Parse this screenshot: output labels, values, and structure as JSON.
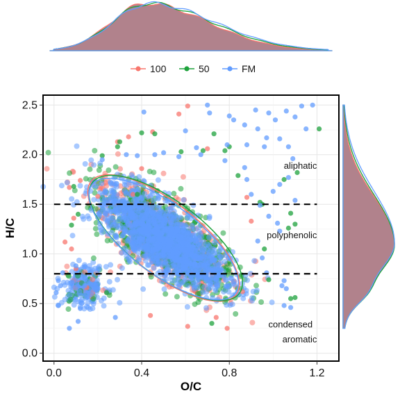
{
  "chart_data": {
    "type": "scatter",
    "xlabel": "O/C",
    "ylabel": "H/C",
    "xlim": [
      -0.05,
      1.3
    ],
    "ylim": [
      -0.08,
      2.6
    ],
    "x_ticks": [
      "0.0",
      "0.4",
      "0.8",
      "1.2"
    ],
    "x_tick_values": [
      0.0,
      0.4,
      0.8,
      1.2
    ],
    "y_ticks": [
      "0.0",
      "0.5",
      "1.0",
      "1.5",
      "2.0",
      "2.5"
    ],
    "y_tick_values": [
      0.0,
      0.5,
      1.0,
      1.5,
      2.0,
      2.5
    ],
    "grid": true,
    "legend_position": "top",
    "series": [
      {
        "name": "100",
        "color": "#F8766D",
        "cluster_center": [
          0.47,
          1.17
        ],
        "ellipse": {
          "center": [
            0.5,
            1.16
          ],
          "semi_axis_x": 0.42,
          "semi_axis_y": 0.36,
          "angle_deg": -38
        },
        "points": [
          [
            0.61,
            2.49
          ],
          [
            0.57,
            2.41
          ],
          [
            0.07,
            1.67
          ],
          [
            0.12,
            1.74
          ],
          [
            0.09,
            1.36
          ],
          [
            0.29,
            2.13
          ],
          [
            0.34,
            2.18
          ],
          [
            0.05,
            1.12
          ],
          [
            0.08,
            1.05
          ],
          [
            0.45,
            2.23
          ],
          [
            0.7,
            2.06
          ],
          [
            0.88,
            1.57
          ],
          [
            0.9,
            1.33
          ],
          [
            0.74,
            0.36
          ],
          [
            0.61,
            0.27
          ],
          [
            0.44,
            0.38
          ],
          [
            0.2,
            1.58
          ],
          [
            0.36,
            1.6
          ],
          [
            0.4,
            1.86
          ],
          [
            0.86,
            0.62
          ],
          [
            0.79,
            0.25
          ],
          [
            0.15,
            0.66
          ],
          [
            0.1,
            0.85
          ]
        ]
      },
      {
        "name": "50",
        "color": "#1EA23C",
        "cluster_center": [
          0.49,
          1.15
        ],
        "ellipse": {
          "center": [
            0.51,
            1.16
          ],
          "semi_axis_x": 0.42,
          "semi_axis_y": 0.37,
          "angle_deg": -37
        },
        "points": [
          [
            0.4,
            2.22
          ],
          [
            0.29,
            2.08
          ],
          [
            0.46,
            2.21
          ],
          [
            0.73,
            2.21
          ],
          [
            0.84,
            1.79
          ],
          [
            0.94,
            1.52
          ],
          [
            0.95,
            1.5
          ],
          [
            1.08,
            1.41
          ],
          [
            1.1,
            1.3
          ],
          [
            1.05,
            1.75
          ],
          [
            1.11,
            1.82
          ],
          [
            1.08,
            0.55
          ],
          [
            1.1,
            0.56
          ],
          [
            0.09,
            1.68
          ],
          [
            0.11,
            1.4
          ],
          [
            0.22,
            1.99
          ],
          [
            0.08,
            1.29
          ],
          [
            0.24,
            0.61
          ],
          [
            0.72,
            0.3
          ],
          [
            0.98,
            0.74
          ],
          [
            0.96,
            1.05
          ],
          [
            1.07,
            1.26
          ],
          [
            0.78,
            2.04
          ],
          [
            0.8,
            2.08
          ],
          [
            0.3,
            2.13
          ],
          [
            0.38,
            1.6
          ],
          [
            1.21,
            2.26
          ],
          [
            0.68,
            2.04
          ],
          [
            0.58,
            2.03
          ]
        ]
      },
      {
        "name": "FM",
        "color": "#619CFF",
        "cluster_center": [
          0.48,
          1.15
        ],
        "ellipse": {
          "center": [
            0.5,
            1.15
          ],
          "semi_axis_x": 0.41,
          "semi_axis_y": 0.35,
          "angle_deg": -37
        },
        "points": [
          [
            0.7,
            2.5
          ],
          [
            1.13,
            2.49
          ],
          [
            1.18,
            2.5
          ],
          [
            0.98,
            2.42
          ],
          [
            1.06,
            2.44
          ],
          [
            0.92,
            2.45
          ],
          [
            1.1,
            2.38
          ],
          [
            0.71,
            2.42
          ],
          [
            0.8,
            2.39
          ],
          [
            0.82,
            2.35
          ],
          [
            1.01,
            2.35
          ],
          [
            1.15,
            2.26
          ],
          [
            0.87,
            2.3
          ],
          [
            0.93,
            2.26
          ],
          [
            0.97,
            2.17
          ],
          [
            1.03,
            2.16
          ],
          [
            0.88,
            2.1
          ],
          [
            1.07,
            2.08
          ],
          [
            0.96,
            2.08
          ],
          [
            0.67,
            2.0
          ],
          [
            0.78,
            1.94
          ],
          [
            0.79,
            2.1
          ],
          [
            0.87,
            1.87
          ],
          [
            1.09,
            1.96
          ],
          [
            1.1,
            1.54
          ],
          [
            1.03,
            1.7
          ],
          [
            1.0,
            1.63
          ],
          [
            1.07,
            1.77
          ],
          [
            0.88,
            1.75
          ],
          [
            0.9,
            1.6
          ],
          [
            0.94,
            1.49
          ],
          [
            0.98,
            1.38
          ],
          [
            1.03,
            1.23
          ],
          [
            1.02,
            1.31
          ],
          [
            0.93,
            1.13
          ],
          [
            0.95,
            0.96
          ],
          [
            0.97,
            0.81
          ],
          [
            1.05,
            0.73
          ],
          [
            1.04,
            0.68
          ],
          [
            1.06,
            0.65
          ],
          [
            1.05,
            0.48
          ],
          [
            1.08,
            0.46
          ],
          [
            0.02,
            0.48
          ],
          [
            0.03,
            0.68
          ],
          [
            0.04,
            0.81
          ],
          [
            0.1,
            0.88
          ],
          [
            0.07,
            0.25
          ],
          [
            0.11,
            0.32
          ],
          [
            0.02,
            0.73
          ],
          [
            0.01,
            0.61
          ],
          [
            0.22,
            1.95
          ],
          [
            0.33,
            2.0
          ],
          [
            0.38,
            1.99
          ],
          [
            0.6,
            2.24
          ],
          [
            0.65,
            2.07
          ],
          [
            0.41,
            2.43
          ],
          [
            0.46,
            2.0
          ],
          [
            0.5,
            2.02
          ],
          [
            0.57,
            1.98
          ],
          [
            0.28,
            0.36
          ],
          [
            0.14,
            0.68
          ],
          [
            0.12,
            0.45
          ]
        ]
      }
    ],
    "reference_lines": [
      {
        "type": "horizontal",
        "y": 1.5,
        "style": "dashed"
      },
      {
        "type": "horizontal",
        "y": 0.8,
        "style": "dashed"
      }
    ],
    "annotations": [
      {
        "text": "aliphatic",
        "x": 1.2,
        "y": 1.86
      },
      {
        "text": "polyphenolic",
        "x": 1.2,
        "y": 1.16
      },
      {
        "text": "condensed",
        "x": 1.18,
        "y": 0.26
      },
      {
        "text": "aromatic",
        "x": 1.2,
        "y": 0.11
      }
    ],
    "marginal_density": {
      "x": {
        "mode": 0.42,
        "range": [
          0.0,
          1.25
        ]
      },
      "y": {
        "mode": 1.1,
        "range": [
          0.25,
          2.5
        ]
      }
    }
  }
}
